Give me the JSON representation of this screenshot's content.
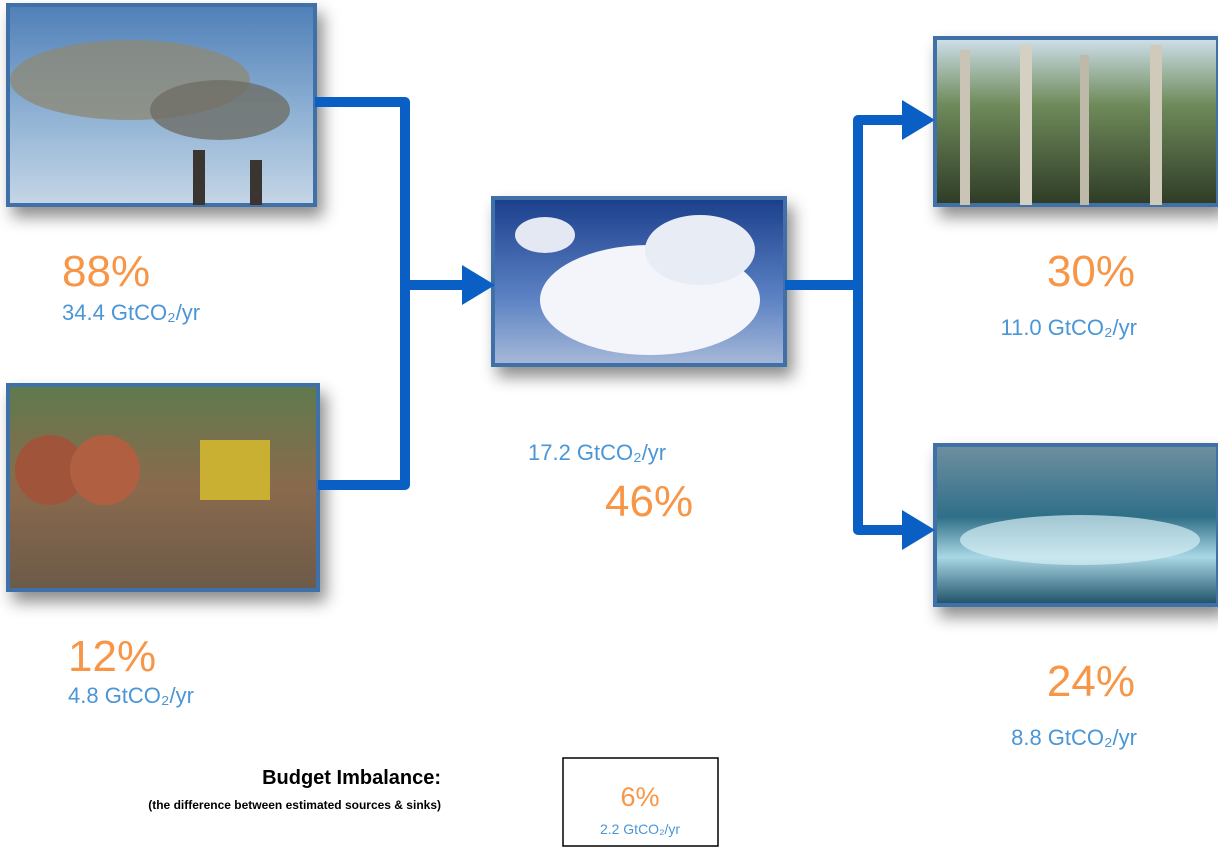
{
  "sources": [
    {
      "percent": "88%",
      "amount": "34.4 GtCO₂/yr"
    },
    {
      "percent": "12%",
      "amount": "4.8 GtCO₂/yr"
    }
  ],
  "atmosphere": {
    "amount": "17.2 GtCO₂/yr",
    "percent": "46%"
  },
  "sinks": [
    {
      "percent": "30%",
      "amount": "11.0 GtCO₂/yr"
    },
    {
      "percent": "24%",
      "amount": "8.8 GtCO₂/yr"
    }
  ],
  "imbalance": {
    "title": "Budget Imbalance:",
    "note": "(the difference between estimated sources & sinks)",
    "percent": "6%",
    "amount": "2.2 GtCO₂/yr"
  }
}
